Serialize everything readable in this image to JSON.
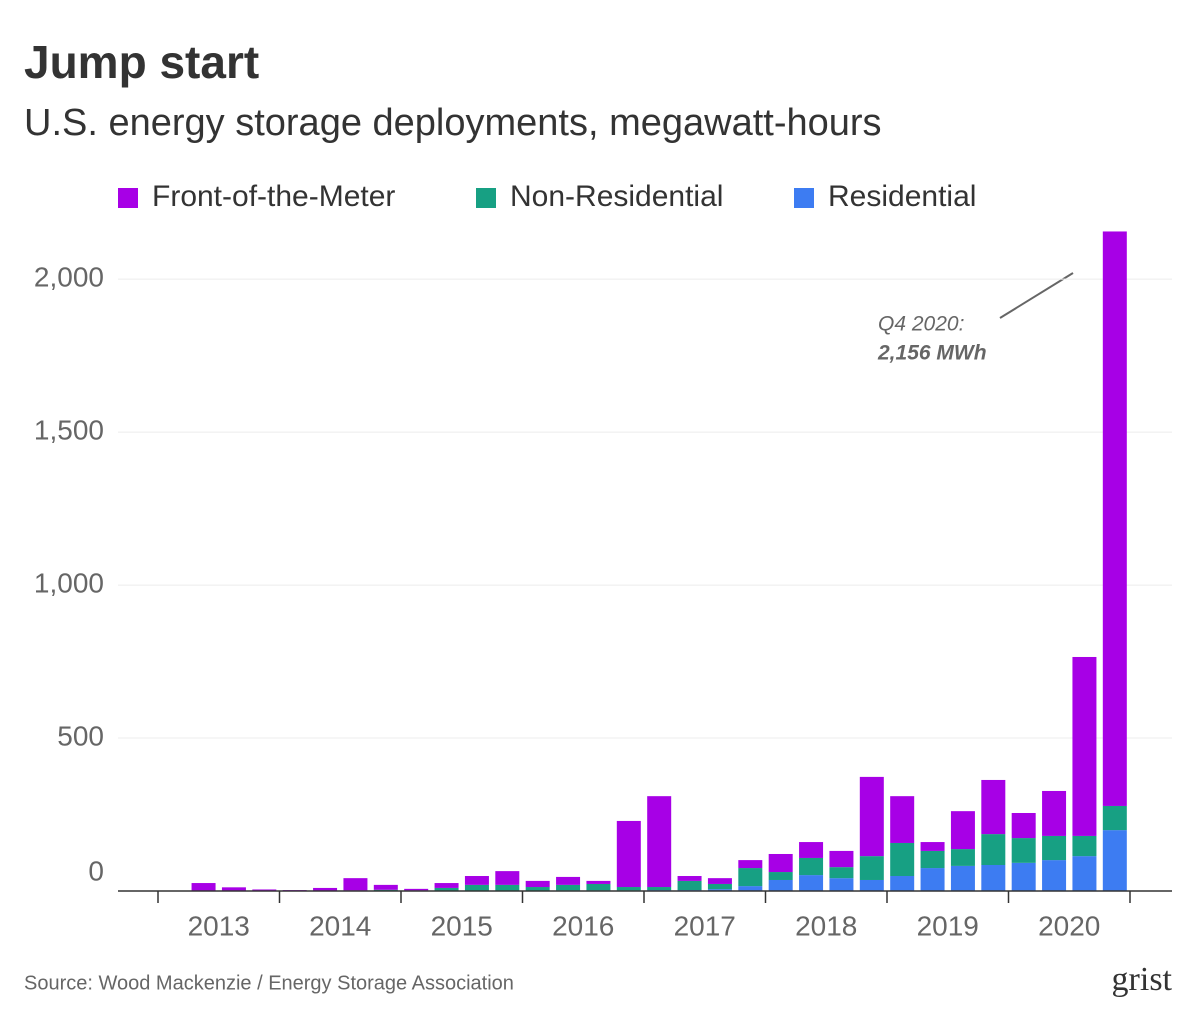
{
  "chart_data": {
    "type": "stacked-bar",
    "title": "Jump start",
    "subtitle": "U.S. energy storage deployments, megawatt-hours",
    "years": [
      "2013",
      "2014",
      "2015",
      "2016",
      "2017",
      "2018",
      "2019",
      "2020"
    ],
    "series": [
      {
        "name": "Residential",
        "color": "#3d7cf2",
        "values": [
          0,
          0,
          0,
          0,
          0,
          0,
          0,
          0,
          0,
          1,
          1,
          1,
          1,
          2,
          2,
          2,
          3,
          3,
          6,
          16,
          36,
          52,
          42,
          36,
          49,
          75,
          82,
          85,
          92,
          101,
          114,
          199
        ]
      },
      {
        "name": "Non-Residential",
        "color": "#17a083",
        "values": [
          0,
          0,
          0,
          0,
          0,
          1,
          2,
          4,
          2,
          9,
          19,
          19,
          12,
          18,
          21,
          11,
          10,
          30,
          17,
          59,
          26,
          56,
          36,
          78,
          108,
          56,
          55,
          101,
          81,
          79,
          66,
          79
        ]
      },
      {
        "name": "Front-of-the-Meter",
        "color": "#a700e6",
        "values": [
          0,
          26,
          12,
          5,
          3,
          9,
          40,
          16,
          5,
          16,
          29,
          45,
          20,
          26,
          10,
          216,
          297,
          16,
          19,
          26,
          59,
          52,
          53,
          259,
          153,
          29,
          124,
          177,
          82,
          147,
          585,
          1878
        ]
      }
    ],
    "legend_order": [
      2,
      1,
      0
    ],
    "ylim": [
      0,
      2200
    ],
    "yticks": [
      {
        "value": 0,
        "label": "0"
      },
      {
        "value": 500,
        "label": "500"
      },
      {
        "value": 1000,
        "label": "1,000"
      },
      {
        "value": 1500,
        "label": "1,500"
      },
      {
        "value": 2000,
        "label": "2,000"
      }
    ],
    "grid": true,
    "annotation": {
      "line1": "Q4 2020:",
      "line2": "2,156 MWh"
    },
    "source": "Source: Wood Mackenzie / Energy Storage Association",
    "logo": "grist"
  }
}
